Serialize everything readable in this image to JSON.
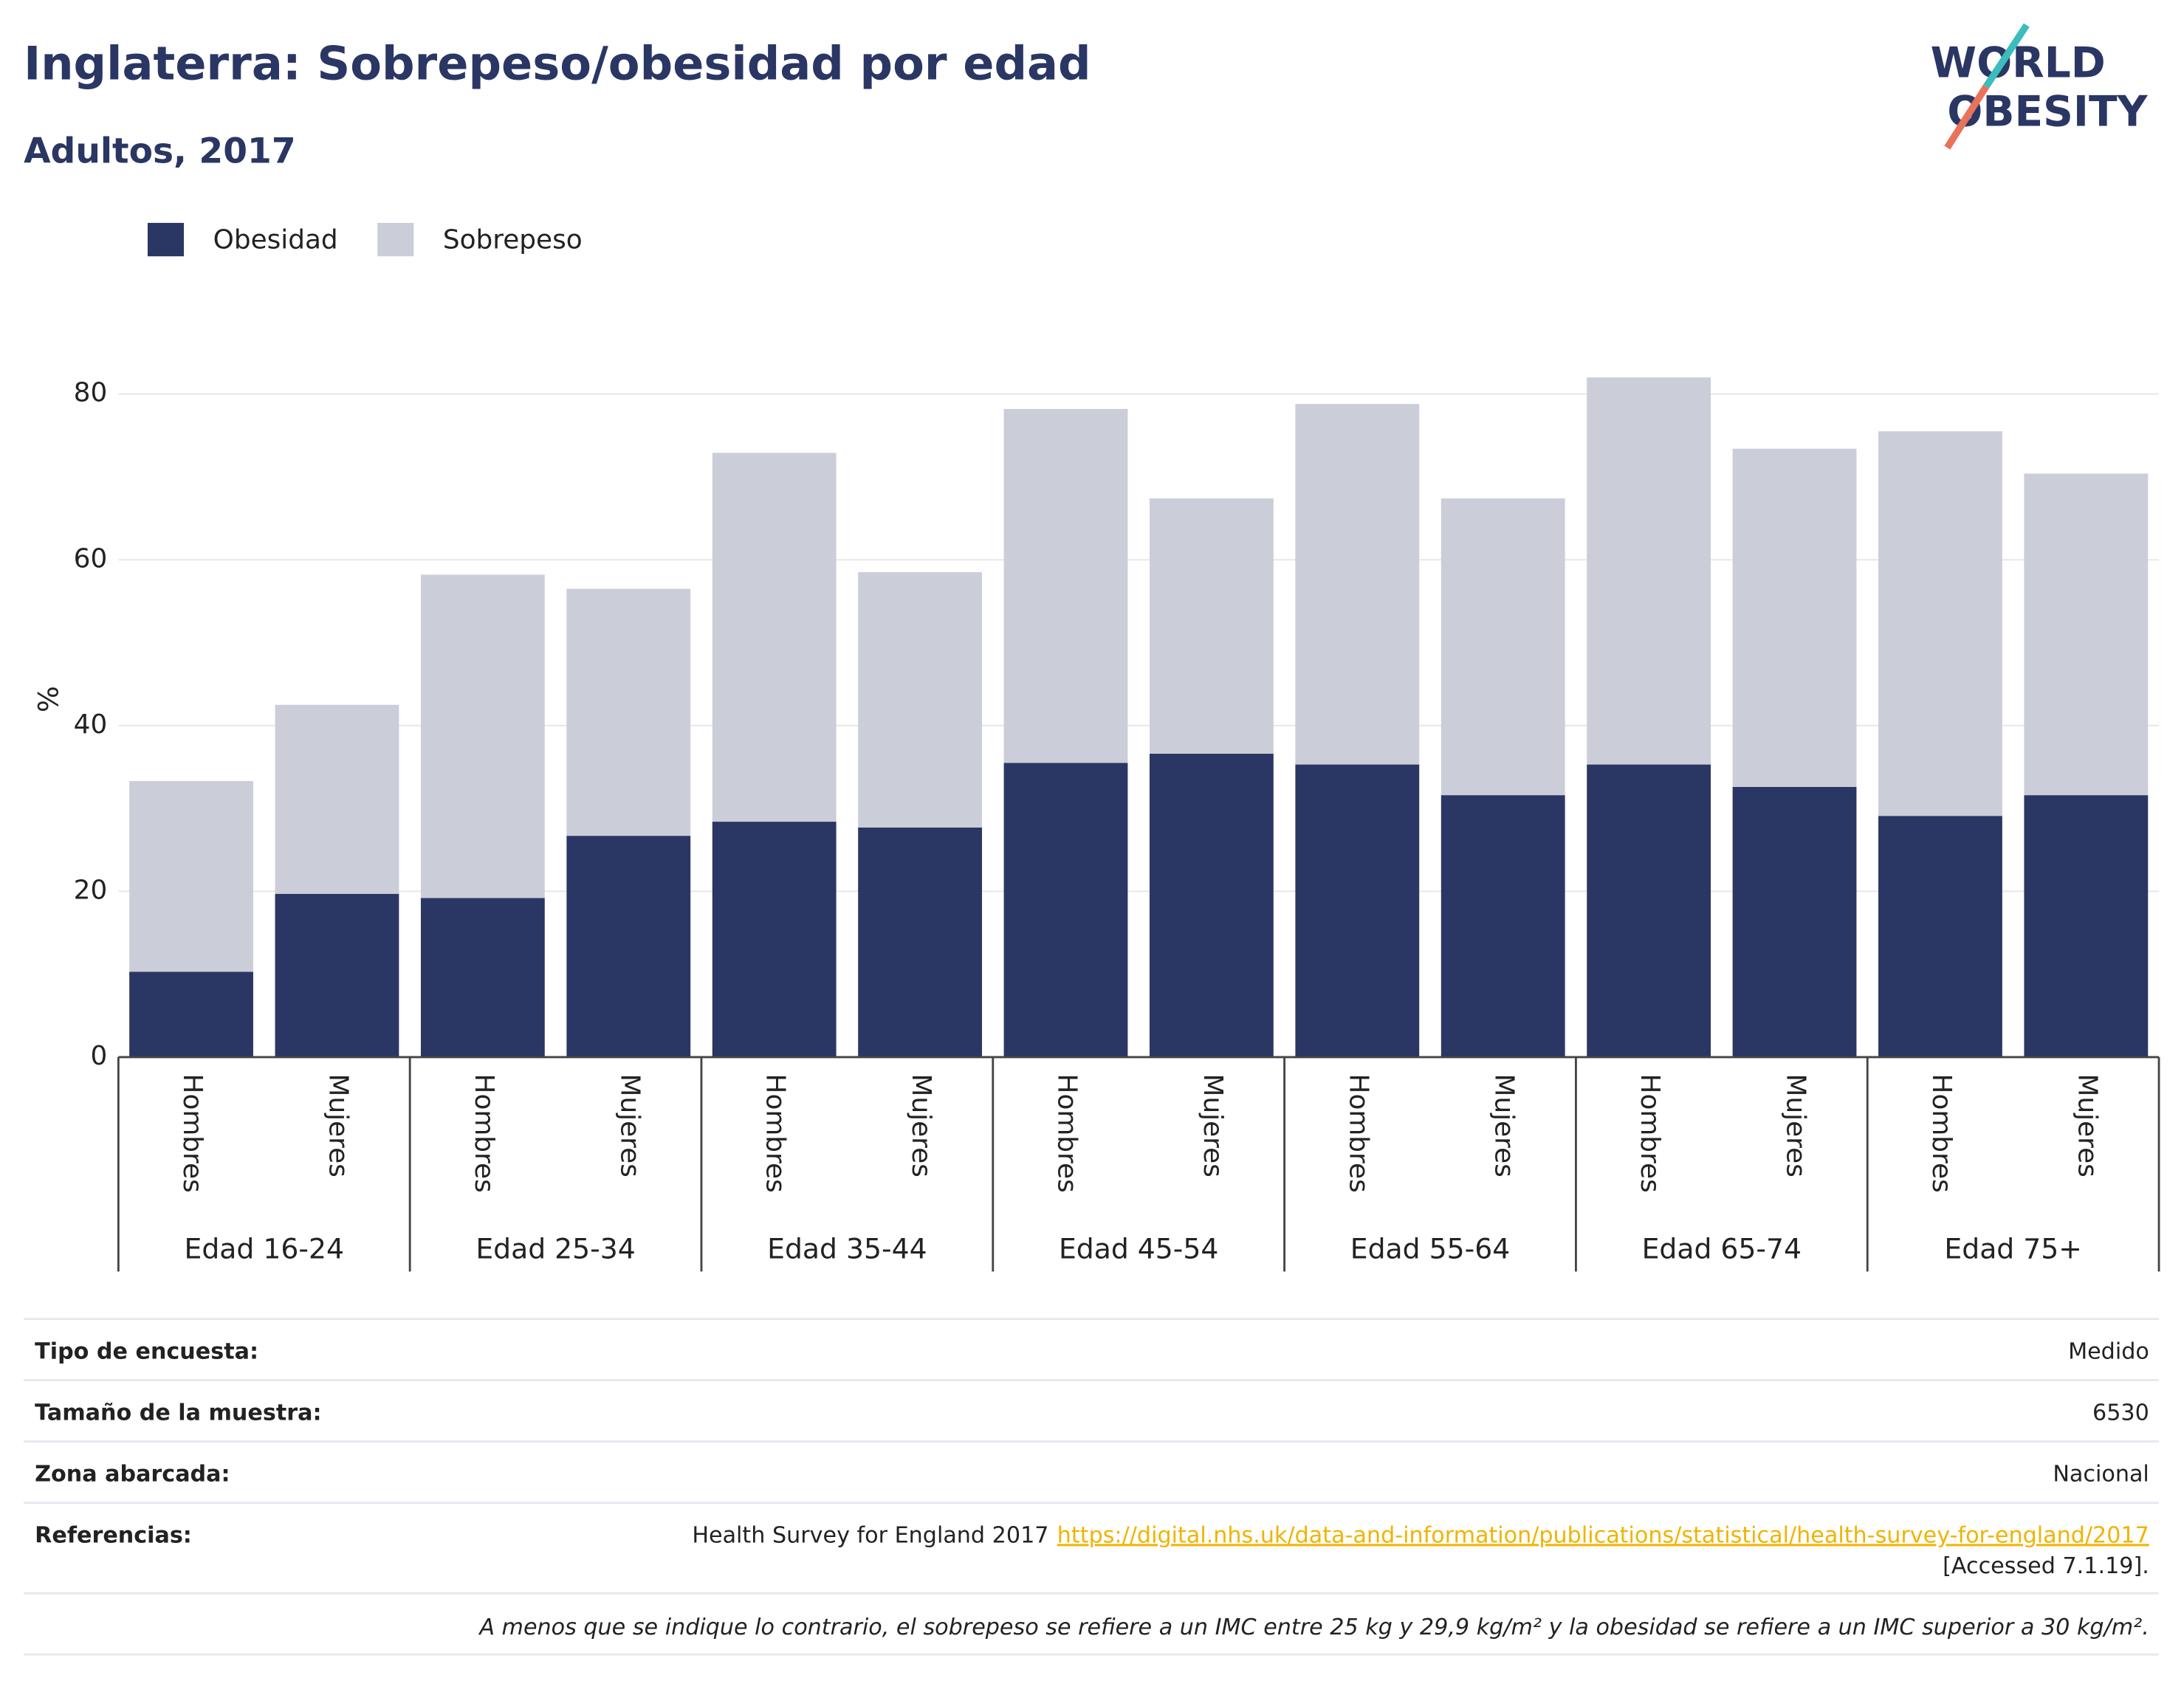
{
  "chart_data": {
    "type": "bar",
    "stacked": true,
    "title": "Inglaterra: Sobrepeso/obesidad por edad",
    "subtitle": "Adultos, 2017",
    "logo": [
      "WORLD",
      "OBESITY"
    ],
    "ylabel": "%",
    "categories": [
      "Hombres",
      "Mujeres",
      "Hombres",
      "Mujeres",
      "Hombres",
      "Mujeres",
      "Hombres",
      "Mujeres",
      "Hombres",
      "Mujeres",
      "Hombres",
      "Mujeres",
      "Hombres",
      "Mujeres"
    ],
    "groups": [
      "Edad 16-24",
      "Edad 25-34",
      "Edad 35-44",
      "Edad 45-54",
      "Edad 55-64",
      "Edad 65-74",
      "Edad 75+"
    ],
    "series": [
      {
        "name": "Obesidad",
        "color": "#2a3663",
        "values": [
          10.3,
          19.7,
          19.2,
          26.7,
          28.4,
          27.7,
          35.5,
          36.6,
          35.3,
          31.6,
          35.3,
          32.6,
          29.1,
          31.6
        ]
      },
      {
        "name": "Sobrepeso",
        "color": "#cbcdd8",
        "values": [
          23.0,
          22.8,
          39.0,
          29.8,
          44.5,
          30.8,
          42.7,
          30.8,
          43.5,
          35.8,
          46.7,
          40.8,
          46.4,
          38.8
        ]
      }
    ],
    "ylim": [
      0,
      82.5
    ],
    "yticks": [
      0,
      20,
      40,
      60,
      80
    ],
    "grid": true
  },
  "info": {
    "rows": [
      {
        "label": "Tipo de encuesta:",
        "value": "Medido"
      },
      {
        "label": "Tamaño de la muestra:",
        "value": "6530"
      },
      {
        "label": "Zona abarcada:",
        "value": "Nacional"
      }
    ],
    "references": {
      "label": "Referencias:",
      "text": "Health Survey for England 2017",
      "link": "https://digital.nhs.uk/data-and-information/publications/statistical/health-survey-for-england/2017",
      "accessed": "[Accessed 7.1.19]."
    },
    "footnote": "A menos que se indique lo contrario, el sobrepeso se refiere a un IMC entre 25 kg y 29,9 kg/m² y la obesidad se refiere a un IMC superior a 30 kg/m²."
  }
}
